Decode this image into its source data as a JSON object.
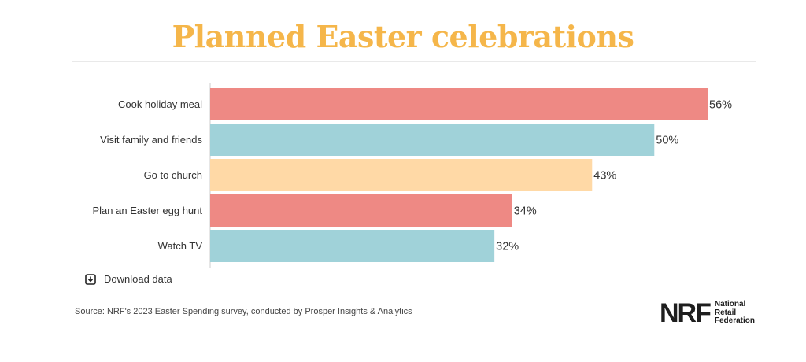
{
  "title": "Planned Easter celebrations",
  "download_label": "Download data",
  "source": "Source: NRF's 2023 Easter Spending survey, conducted by Prosper Insights & Analytics",
  "logo": {
    "mark": "NRF",
    "line1": "National",
    "line2": "Retail",
    "line3": "Federation"
  },
  "colors": {
    "title": "#f5b64a",
    "bar_red": "#ee8984",
    "bar_teal": "#a0d2d9",
    "bar_peach": "#ffd9a6"
  },
  "chart_data": {
    "type": "bar",
    "orientation": "horizontal",
    "title": "Planned Easter celebrations",
    "categories": [
      "Cook holiday meal",
      "Visit family and friends",
      "Go to church",
      "Plan an Easter egg hunt",
      "Watch TV"
    ],
    "values": [
      56,
      50,
      43,
      34,
      32
    ],
    "value_labels": [
      "56%",
      "50%",
      "43%",
      "34%",
      "32%"
    ],
    "bar_colors": [
      "#ee8984",
      "#a0d2d9",
      "#ffd9a6",
      "#ee8984",
      "#a0d2d9"
    ],
    "unit": "%",
    "xlim": [
      0,
      56
    ],
    "grid": false,
    "legend": "none"
  }
}
